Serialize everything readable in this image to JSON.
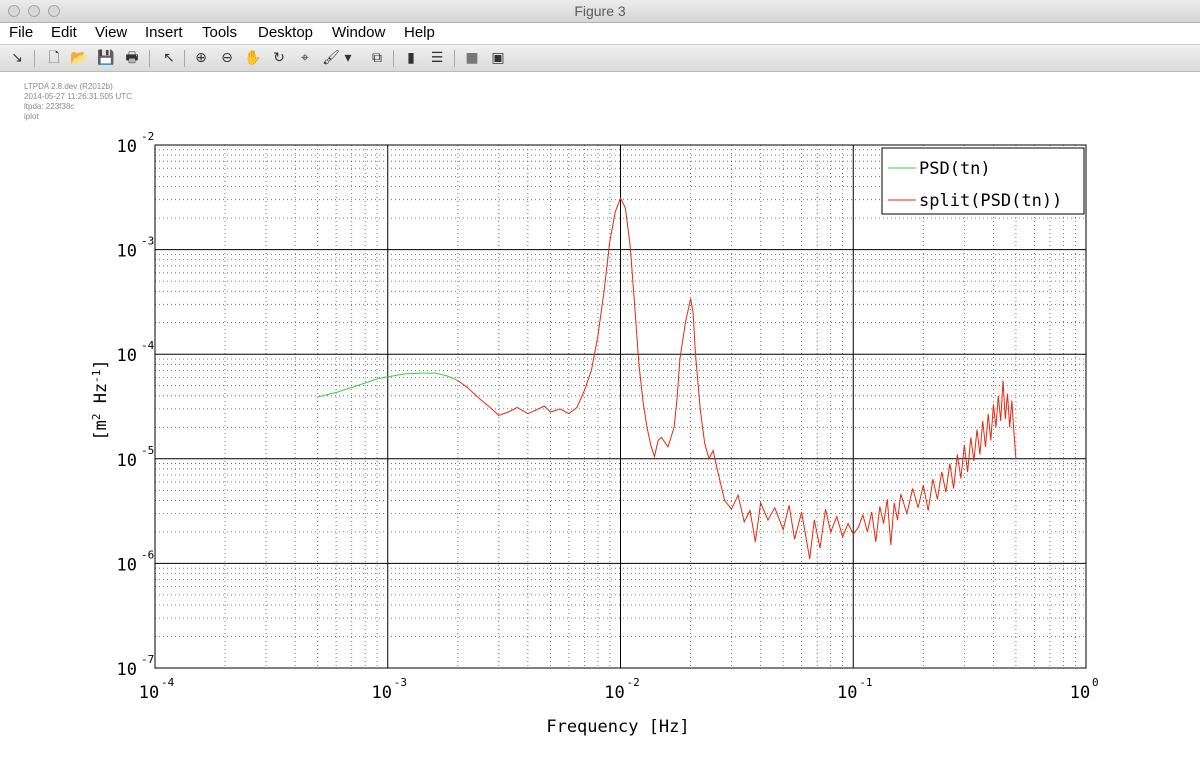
{
  "window": {
    "title": "Figure 3"
  },
  "menu": {
    "items": [
      "File",
      "Edit",
      "View",
      "Insert",
      "Tools",
      "Desktop",
      "Window",
      "Help"
    ]
  },
  "toolbar": {
    "icons": [
      {
        "name": "dock-arrow-icon",
        "glyph": "↘"
      },
      {
        "name": "new-figure-icon",
        "glyph": "🗋"
      },
      {
        "name": "open-file-icon",
        "glyph": "📂"
      },
      {
        "name": "save-icon",
        "glyph": "💾"
      },
      {
        "name": "print-icon",
        "glyph": "🖶"
      },
      {
        "name": "edit-plot-pointer-icon",
        "glyph": "↖"
      },
      {
        "name": "zoom-in-icon",
        "glyph": "⊕"
      },
      {
        "name": "zoom-out-icon",
        "glyph": "⊖"
      },
      {
        "name": "pan-hand-icon",
        "glyph": "✋"
      },
      {
        "name": "rotate-3d-icon",
        "glyph": "↻"
      },
      {
        "name": "data-cursor-icon",
        "glyph": "⌖"
      },
      {
        "name": "brush-icon",
        "glyph": "🖌"
      },
      {
        "name": "brush-dropdown-icon",
        "glyph": "▾"
      },
      {
        "name": "link-plot-icon",
        "glyph": "⧉"
      },
      {
        "name": "insert-colorbar-icon",
        "glyph": "▮"
      },
      {
        "name": "insert-legend-icon",
        "glyph": "☰"
      },
      {
        "name": "hide-plot-tools-icon",
        "glyph": "■"
      },
      {
        "name": "show-plot-tools-icon",
        "glyph": "▣"
      }
    ]
  },
  "metadata": {
    "lines": [
      "LTPDA 2.8.dev (R2012b)",
      "2014-05-27 11:26:31.505 UTC",
      "ltpda: 223f38c",
      "iplot"
    ]
  },
  "colors": {
    "green": "#3ccd3c",
    "red": "#e8280c",
    "grid_major": "#000000",
    "grid_minor": "#555555"
  },
  "chart_data": {
    "type": "line",
    "title": "",
    "xlabel": "Frequency   [Hz]",
    "ylabel": "[m^2 Hz^-1]",
    "xscale": "log",
    "yscale": "log",
    "xlim": [
      0.0001,
      1
    ],
    "ylim": [
      1e-07,
      0.01
    ],
    "x_ticks": [
      {
        "base": "10",
        "exp": "-4"
      },
      {
        "base": "10",
        "exp": "-3"
      },
      {
        "base": "10",
        "exp": "-2"
      },
      {
        "base": "10",
        "exp": "-1"
      },
      {
        "base": "10",
        "exp": "0"
      }
    ],
    "y_ticks": [
      {
        "base": "10",
        "exp": "-2"
      },
      {
        "base": "10",
        "exp": "-3"
      },
      {
        "base": "10",
        "exp": "-4"
      },
      {
        "base": "10",
        "exp": "-5"
      },
      {
        "base": "10",
        "exp": "-6"
      },
      {
        "base": "10",
        "exp": "-7"
      }
    ],
    "grid": true,
    "legend": {
      "placement": "top-right"
    },
    "series": [
      {
        "name": "PSD(tn)",
        "color": "#3ccd3c",
        "points": [
          [
            0.0005,
            3.9e-05
          ],
          [
            0.0006,
            4.3e-05
          ],
          [
            0.0007,
            4.8e-05
          ],
          [
            0.0008,
            5.3e-05
          ],
          [
            0.0009,
            5.8e-05
          ],
          [
            0.001,
            6.1e-05
          ],
          [
            0.0012,
            6.5e-05
          ],
          [
            0.0014,
            6.6e-05
          ],
          [
            0.0016,
            6.6e-05
          ],
          [
            0.0018,
            6.2e-05
          ],
          [
            0.002,
            5.6e-05
          ]
        ]
      },
      {
        "name": "split(PSD(tn))",
        "color": "#e8280c",
        "points": [
          [
            0.002,
            5.6e-05
          ],
          [
            0.0022,
            4.8e-05
          ],
          [
            0.0025,
            3.7e-05
          ],
          [
            0.0028,
            3e-05
          ],
          [
            0.003,
            2.6e-05
          ],
          [
            0.0033,
            2.8e-05
          ],
          [
            0.0036,
            3.1e-05
          ],
          [
            0.004,
            2.7e-05
          ],
          [
            0.0043,
            2.9e-05
          ],
          [
            0.0047,
            3.2e-05
          ],
          [
            0.005,
            2.8e-05
          ],
          [
            0.0055,
            3e-05
          ],
          [
            0.006,
            2.7e-05
          ],
          [
            0.0065,
            3.1e-05
          ],
          [
            0.007,
            4.5e-05
          ],
          [
            0.0075,
            7e-05
          ],
          [
            0.008,
            0.00015
          ],
          [
            0.0085,
            0.0004
          ],
          [
            0.009,
            0.0012
          ],
          [
            0.0095,
            0.0023
          ],
          [
            0.01,
            0.0031
          ],
          [
            0.0105,
            0.0025
          ],
          [
            0.011,
            0.0011
          ],
          [
            0.0115,
            0.0003
          ],
          [
            0.012,
            8e-05
          ],
          [
            0.0125,
            3.5e-05
          ],
          [
            0.013,
            2e-05
          ],
          [
            0.0135,
            1.35e-05
          ],
          [
            0.014,
            1.05e-05
          ],
          [
            0.0145,
            1.5e-05
          ],
          [
            0.015,
            1.6e-05
          ],
          [
            0.016,
            1.3e-05
          ],
          [
            0.017,
            2e-05
          ],
          [
            0.0175,
            3.8e-05
          ],
          [
            0.018,
            9e-05
          ],
          [
            0.019,
            0.0002
          ],
          [
            0.02,
            0.00034
          ],
          [
            0.0205,
            0.00025
          ],
          [
            0.021,
            0.0001
          ],
          [
            0.022,
            3e-05
          ],
          [
            0.023,
            1.4e-05
          ],
          [
            0.024,
            1e-05
          ],
          [
            0.025,
            1.2e-05
          ],
          [
            0.026,
            8e-06
          ],
          [
            0.028,
            4e-06
          ],
          [
            0.03,
            3.3e-06
          ],
          [
            0.032,
            4.5e-06
          ],
          [
            0.034,
            2.5e-06
          ],
          [
            0.036,
            3.2e-06
          ],
          [
            0.038,
            1.6e-06
          ],
          [
            0.04,
            3.8e-06
          ],
          [
            0.043,
            2.6e-06
          ],
          [
            0.046,
            3.4e-06
          ],
          [
            0.05,
            2.1e-06
          ],
          [
            0.053,
            3.6e-06
          ],
          [
            0.056,
            1.7e-06
          ],
          [
            0.06,
            3.1e-06
          ],
          [
            0.065,
            1.1e-06
          ],
          [
            0.068,
            2.6e-06
          ],
          [
            0.072,
            1.4e-06
          ],
          [
            0.076,
            3.3e-06
          ],
          [
            0.08,
            2e-06
          ],
          [
            0.085,
            2.8e-06
          ],
          [
            0.09,
            1.8e-06
          ],
          [
            0.095,
            2.4e-06
          ],
          [
            0.1,
            1.9e-06
          ],
          [
            0.105,
            2.2e-06
          ],
          [
            0.11,
            2.9e-06
          ],
          [
            0.115,
            2e-06
          ],
          [
            0.12,
            3.1e-06
          ],
          [
            0.125,
            1.6e-06
          ],
          [
            0.13,
            3.5e-06
          ],
          [
            0.135,
            2.4e-06
          ],
          [
            0.14,
            4.1e-06
          ],
          [
            0.145,
            1.5e-06
          ],
          [
            0.15,
            3.8e-06
          ],
          [
            0.155,
            2.6e-06
          ],
          [
            0.16,
            4.6e-06
          ],
          [
            0.17,
            3e-06
          ],
          [
            0.18,
            5.2e-06
          ],
          [
            0.19,
            3.4e-06
          ],
          [
            0.2,
            5.6e-06
          ],
          [
            0.21,
            3.2e-06
          ],
          [
            0.22,
            6.4e-06
          ],
          [
            0.23,
            4.1e-06
          ],
          [
            0.24,
            7.5e-06
          ],
          [
            0.25,
            4.8e-06
          ],
          [
            0.26,
            9e-06
          ],
          [
            0.27,
            5.2e-06
          ],
          [
            0.28,
            1.1e-05
          ],
          [
            0.29,
            6.5e-06
          ],
          [
            0.3,
            1.35e-05
          ],
          [
            0.31,
            7.5e-06
          ],
          [
            0.32,
            1.6e-05
          ],
          [
            0.33,
            9.5e-06
          ],
          [
            0.34,
            1.9e-05
          ],
          [
            0.35,
            1.1e-05
          ],
          [
            0.36,
            2.3e-05
          ],
          [
            0.37,
            1.3e-05
          ],
          [
            0.38,
            2.7e-05
          ],
          [
            0.39,
            1.5e-05
          ],
          [
            0.4,
            3.3e-05
          ],
          [
            0.41,
            2e-05
          ],
          [
            0.42,
            4e-05
          ],
          [
            0.43,
            2.3e-05
          ],
          [
            0.44,
            5.6e-05
          ],
          [
            0.45,
            2.4e-05
          ],
          [
            0.46,
            4.2e-05
          ],
          [
            0.47,
            2e-05
          ],
          [
            0.48,
            3.6e-05
          ],
          [
            0.49,
            1.8e-05
          ],
          [
            0.5,
            1e-05
          ]
        ]
      }
    ]
  }
}
